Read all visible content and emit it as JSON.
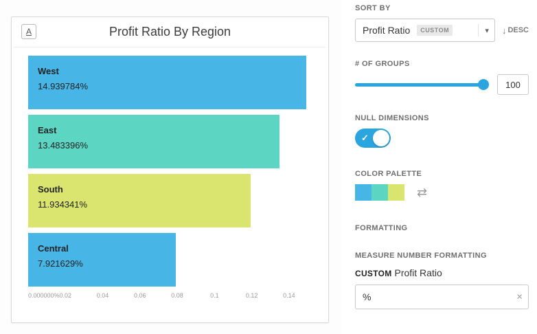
{
  "chart_data": {
    "type": "bar",
    "orientation": "horizontal",
    "title": "Profit Ratio By Region",
    "mark_icon": "A",
    "categories": [
      "West",
      "East",
      "South",
      "Central"
    ],
    "values": [
      14.939784,
      13.483396,
      11.934341,
      7.921629
    ],
    "value_labels": [
      "14.939784%",
      "13.483396%",
      "11.934341%",
      "7.921629%"
    ],
    "bar_colors": [
      "#47b5e6",
      "#5cd6c3",
      "#d9e56e",
      "#47b5e6"
    ],
    "x_ticks": [
      {
        "label": "0.000000%",
        "value": 0
      },
      {
        "label": "0.02",
        "value": 0.02
      },
      {
        "label": "0.04",
        "value": 0.04
      },
      {
        "label": "0.06",
        "value": 0.06
      },
      {
        "label": "0.08",
        "value": 0.08
      },
      {
        "label": "0.1",
        "value": 0.1
      },
      {
        "label": "0.12",
        "value": 0.12
      },
      {
        "label": "0.14",
        "value": 0.14
      }
    ],
    "xlim": [
      0,
      0.15
    ],
    "grid": false,
    "legend": false
  },
  "panel": {
    "sort_by": {
      "label": "SORT BY",
      "value": "Profit Ratio",
      "badge": "CUSTOM",
      "desc": "DESC"
    },
    "groups": {
      "label": "# OF GROUPS",
      "value": "100",
      "slider_pct": 100
    },
    "null_dimensions": {
      "label": "NULL DIMENSIONS",
      "enabled": true
    },
    "color_palette": {
      "label": "COLOR PALETTE",
      "colors": [
        "#47b5e6",
        "#5cd6c3",
        "#d9e56e"
      ]
    },
    "formatting_label": "FORMATTING",
    "measure_formatting": {
      "label": "MEASURE NUMBER FORMATTING",
      "custom": "CUSTOM",
      "measure": "Profit Ratio",
      "value": "%"
    }
  },
  "colors": {
    "accent_blue": "#2aa5e0"
  },
  "icons": {
    "caret": "▾",
    "desc_arrow": "↓",
    "check": "✓",
    "swap": "⇄",
    "clear": "×"
  }
}
